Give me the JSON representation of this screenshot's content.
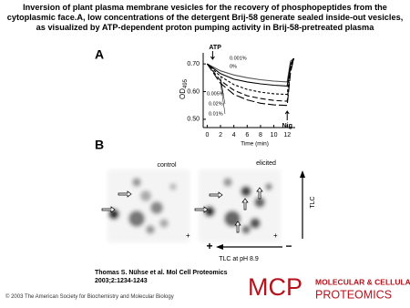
{
  "title": "Inversion of plant plasma membrane vesicles for the recovery of phosphopeptides from the cytoplasmic face.A, low concentrations of the detergent Brij-58 generate sealed inside-out vesicles, as visualized by ATP-dependent proton pumping activity in Brij-58-pretreated plasma",
  "figure": {
    "panel_a": {
      "label": "A",
      "type": "line",
      "y_label": {
        "text": "OD",
        "sub": "495"
      },
      "x_label": "Time (min)",
      "ylim": [
        0.47,
        0.74
      ],
      "yticks": [
        {
          "value": 0.7,
          "label": "0.70"
        },
        {
          "value": 0.6,
          "label": "0.60"
        },
        {
          "value": 0.5,
          "label": "0.50"
        }
      ],
      "xlim": [
        -0.6,
        13.2
      ],
      "xticks": [
        0,
        2,
        4,
        6,
        8,
        10,
        12
      ],
      "annotations": [
        "ATP",
        "Nig"
      ],
      "x": [
        0,
        2,
        4,
        6,
        8,
        10,
        12,
        12.5,
        13
      ],
      "series": [
        {
          "name": "0%",
          "color": "#555555",
          "dash": "none",
          "values": [
            0.7,
            0.675,
            0.66,
            0.65,
            0.643,
            0.638,
            0.635,
            0.71,
            0.72
          ]
        },
        {
          "name": "0.001%",
          "color": "#000000",
          "dash": "none",
          "values": [
            0.7,
            0.665,
            0.645,
            0.635,
            0.628,
            0.623,
            0.62,
            0.7,
            0.72
          ]
        },
        {
          "name": "0.005%",
          "color": "#000000",
          "dash": "3,2",
          "values": [
            0.7,
            0.655,
            0.625,
            0.608,
            0.598,
            0.592,
            0.59,
            0.69,
            0.72
          ]
        },
        {
          "name": "0.02%",
          "color": "#000000",
          "dash": "6,3",
          "values": [
            0.7,
            0.64,
            0.605,
            0.585,
            0.575,
            0.568,
            0.565,
            0.68,
            0.72
          ]
        },
        {
          "name": "0.01%",
          "color": "#000000",
          "dash": "9,3",
          "values": [
            0.7,
            0.63,
            0.59,
            0.57,
            0.558,
            0.552,
            0.55,
            0.67,
            0.72
          ]
        }
      ]
    },
    "panel_b": {
      "label": "B",
      "control": "control",
      "elicited": "elicited",
      "tlc": "TLC",
      "plus": "+",
      "minus": "−",
      "x_label": "TLC at pH 8.9",
      "origin_mark": "+"
    }
  },
  "citation": "Thomas S. Nühse et al. Mol Cell Proteomics 2003;2:1234-1243",
  "copyright": "© 2003 The American Society for Biochemistry and Molecular Biology",
  "logo": {
    "mark": "MCP",
    "line1": "MOLECULAR & CELLULAR",
    "line2": "PROTEOMICS"
  }
}
